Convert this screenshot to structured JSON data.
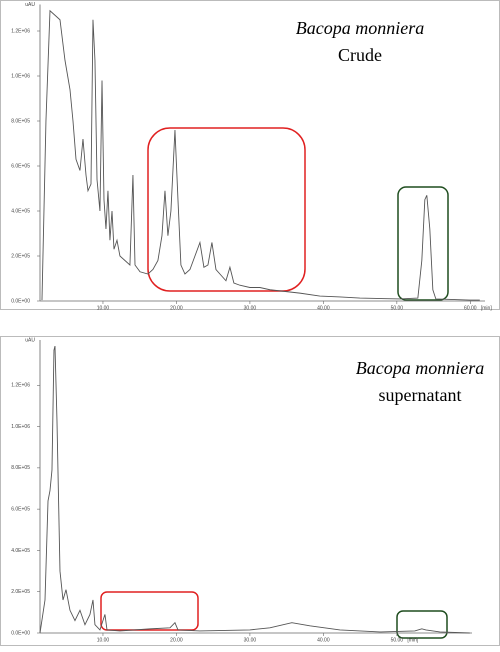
{
  "chart_data": [
    {
      "type": "line",
      "title": "Bacopa monniera",
      "subtitle": "Crude",
      "y_label": "uAU",
      "x_label": "[min]",
      "color": "#555555",
      "xlim": [
        1.43,
        62
      ],
      "ylim": [
        0,
        1300000
      ],
      "xticks": [
        {
          "value": 10,
          "label": "10.00"
        },
        {
          "value": 20,
          "label": "20.00"
        },
        {
          "value": 30,
          "label": "30.00"
        },
        {
          "value": 40,
          "label": "40.00"
        },
        {
          "value": 50,
          "label": "50.00"
        },
        {
          "value": 60,
          "label": "60.00"
        }
      ],
      "yticks": [
        {
          "value": 0,
          "label": "0.0E+00"
        },
        {
          "value": 200000,
          "label": "2.0E+05"
        },
        {
          "value": 400000,
          "label": "4.0E+05"
        },
        {
          "value": 600000,
          "label": "6.0E+05"
        },
        {
          "value": 800000,
          "label": "8.0E+05"
        },
        {
          "value": 1000000,
          "label": "1.0E+06"
        },
        {
          "value": 1200000,
          "label": "1.2E+06"
        }
      ],
      "x": [
        1.7,
        2.24,
        2.79,
        3.47,
        4.15,
        4.83,
        5.51,
        5.92,
        6.33,
        6.87,
        7.28,
        7.69,
        7.96,
        8.37,
        8.64,
        8.91,
        9.19,
        9.59,
        9.87,
        10.14,
        10.41,
        10.68,
        10.95,
        11.23,
        11.5,
        11.91,
        12.31,
        12.99,
        13.67,
        14.08,
        14.36,
        15.04,
        16.12,
        16.8,
        17.48,
        18.03,
        18.44,
        18.84,
        19.25,
        19.8,
        20.21,
        20.61,
        21.16,
        21.84,
        22.52,
        23.2,
        23.74,
        24.29,
        24.83,
        25.38,
        25.92,
        26.74,
        27.28,
        27.82,
        28.64,
        30.0,
        31.36,
        32.72,
        34.08,
        36.8,
        39.52,
        42.25,
        44.97,
        50.41,
        52.86,
        53.4,
        53.81,
        54.08,
        54.49,
        54.9,
        55.31,
        59.93,
        61.29
      ],
      "values": [
        4000,
        800000,
        1290000,
        1270000,
        1250000,
        1070000,
        940000,
        800000,
        630000,
        580000,
        720000,
        560000,
        490000,
        520000,
        1250000,
        1070000,
        540000,
        400000,
        980000,
        450000,
        320000,
        490000,
        270000,
        400000,
        230000,
        270000,
        200000,
        180000,
        160000,
        560000,
        160000,
        130000,
        120000,
        140000,
        180000,
        290000,
        490000,
        290000,
        400000,
        760000,
        450000,
        160000,
        120000,
        140000,
        200000,
        260000,
        150000,
        160000,
        260000,
        140000,
        120000,
        90000,
        150000,
        80000,
        70000,
        60000,
        60000,
        50000,
        45000,
        35000,
        22000,
        18000,
        13000,
        9000,
        13000,
        180000,
        450000,
        470000,
        320000,
        50000,
        9000,
        4000,
        4000
      ]
    },
    {
      "type": "line",
      "title": "Bacopa monniera",
      "subtitle": "supernatant",
      "y_label": "uAU",
      "x_label": "[min]",
      "color": "#555555",
      "xlim": [
        1.43,
        62
      ],
      "ylim": [
        0,
        1400000
      ],
      "xticks": [
        {
          "value": 10,
          "label": "10.00"
        },
        {
          "value": 20,
          "label": "20.00"
        },
        {
          "value": 30,
          "label": "30.00"
        },
        {
          "value": 40,
          "label": "40.00"
        },
        {
          "value": 50,
          "label": "50.00"
        }
      ],
      "yticks": [
        {
          "value": 0,
          "label": "0.0E+00"
        },
        {
          "value": 200000,
          "label": "2.0E+05"
        },
        {
          "value": 400000,
          "label": "4.0E+05"
        },
        {
          "value": 600000,
          "label": "6.0E+05"
        },
        {
          "value": 800000,
          "label": "8.0E+05"
        },
        {
          "value": 1000000,
          "label": "1.0E+06"
        },
        {
          "value": 1200000,
          "label": "1.2E+06"
        }
      ],
      "x": [
        1.43,
        2.11,
        2.52,
        2.79,
        3.06,
        3.33,
        3.47,
        3.74,
        4.15,
        4.56,
        4.97,
        5.51,
        6.19,
        6.87,
        7.55,
        8.23,
        8.64,
        8.91,
        9.59,
        10.27,
        10.55,
        12.31,
        16.4,
        19.12,
        19.8,
        20.21,
        23.2,
        30.0,
        32.72,
        35.71,
        38.16,
        42.25,
        44.97,
        47.69,
        52.45,
        53.4,
        53.95,
        55.85,
        59.93
      ],
      "values": [
        0,
        160000,
        640000,
        690000,
        790000,
        1370000,
        1390000,
        1030000,
        300000,
        160000,
        210000,
        110000,
        60000,
        110000,
        40000,
        90000,
        160000,
        40000,
        15000,
        90000,
        15000,
        10000,
        20000,
        25000,
        50000,
        15000,
        10000,
        15000,
        25000,
        50000,
        35000,
        15000,
        10000,
        5000,
        10000,
        20000,
        15000,
        5000,
        0
      ]
    }
  ]
}
